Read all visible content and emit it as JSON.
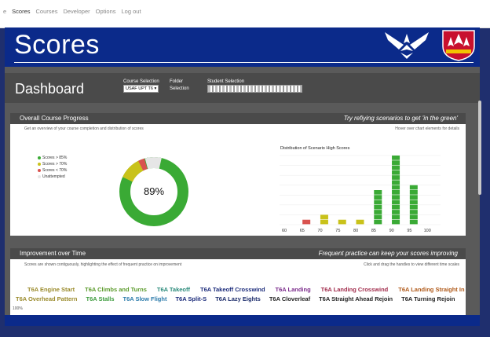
{
  "nav": {
    "items": [
      "e",
      "Scores",
      "Courses",
      "Developer",
      "Options",
      "Log out"
    ],
    "active": 1
  },
  "header": {
    "title": "Scores"
  },
  "dashboard": {
    "title": "Dashboard",
    "course_label": "Course Selection",
    "course_value": "USAF UPT T6 ▾",
    "folder_label": "Folder",
    "folder_sub": "Selection",
    "student_label": "Student Selection",
    "student_value": ""
  },
  "progress": {
    "title": "Overall Course Progress",
    "tagline": "Try refiying scenarios to get 'in the green'",
    "subtitle": "Get an overview of your course completion and distribution of scores",
    "hint": "Hover over chart elements for details",
    "donut_label": "89%",
    "legend": [
      "Scores > 85%",
      "Scores > 70%",
      "Scores < 70%",
      "Unattempted"
    ],
    "colors": {
      "green": "#3aaa35",
      "yellow": "#c9c21a",
      "red": "#d9534f",
      "gray": "#e6e6e6"
    }
  },
  "chart_data": {
    "type": "bar",
    "title": "Distribution of Scenario High Scores",
    "categories": [
      "60",
      "65",
      "70",
      "75",
      "80",
      "85",
      "90",
      "95",
      "100"
    ],
    "values": [
      0,
      1,
      2,
      1,
      1,
      7,
      14,
      8,
      0
    ],
    "colors": [
      "#c9c21a",
      "#d9534f",
      "#c9c21a",
      "#c9c21a",
      "#c9c21a",
      "#3aaa35",
      "#3aaa35",
      "#3aaa35",
      "#3aaa35"
    ],
    "ylim": [
      0,
      14
    ]
  },
  "improvement": {
    "title": "Improvement over Time",
    "tagline": "Frequent practice can keep your scores improving",
    "subtitle": "Scores are shown contiguously, highlighting the effect of frequent practice on improvement",
    "hint": "Click and drag the handles to view different time scales",
    "row1": [
      {
        "label": "T6A Engine Start",
        "color": "#9a8a2a"
      },
      {
        "label": "T6A Climbs and Turns",
        "color": "#5a9a2a"
      },
      {
        "label": "T6A Takeoff",
        "color": "#2a8a7a"
      },
      {
        "label": "T6A Takeoff Crosswind",
        "color": "#1a2a7a"
      },
      {
        "label": "T6A Landing",
        "color": "#7a2a8a"
      },
      {
        "label": "T6A Landing Crosswind",
        "color": "#a02a4a"
      },
      {
        "label": "T6A Landing Straight In",
        "color": "#b05a1a"
      }
    ],
    "row2": [
      {
        "label": "T6A Overhead Pattern",
        "color": "#9a8a2a"
      },
      {
        "label": "T6A Stalls",
        "color": "#3a9a3a"
      },
      {
        "label": "T6A Slow Flight",
        "color": "#2a7aaa"
      },
      {
        "label": "T6A Split-S",
        "color": "#1a2a7a"
      },
      {
        "label": "T6A Lazy Eights",
        "color": "#1a2a6a"
      },
      {
        "label": "T6A Cloverleaf",
        "color": "#222222"
      },
      {
        "label": "T6A Straight Ahead Rejoin",
        "color": "#222222"
      },
      {
        "label": "T6A Turning Rejoin",
        "color": "#222222"
      }
    ],
    "axis_start": "100%"
  }
}
